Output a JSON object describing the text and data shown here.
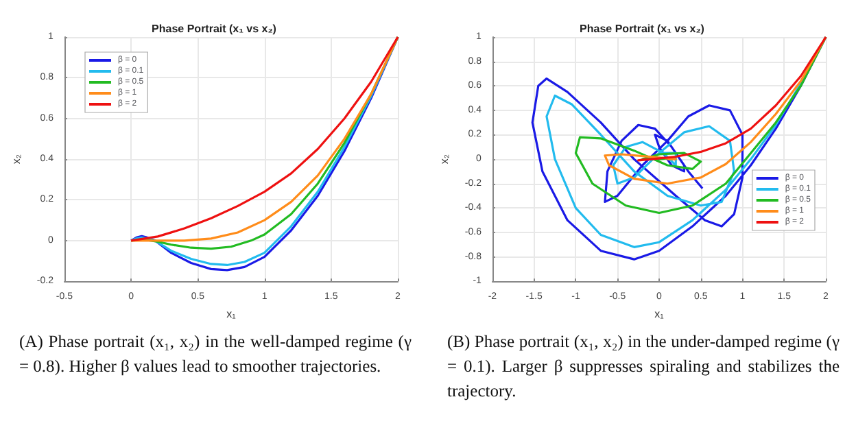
{
  "chart_data": [
    {
      "type": "line",
      "title": "Phase Portrait (x₁ vs x₂)",
      "xlabel": "x₁",
      "ylabel": "x₂",
      "xlim": [
        -0.5,
        2
      ],
      "xticks": [
        -0.5,
        0,
        0.5,
        1,
        1.5,
        2
      ],
      "ylim": [
        -0.2,
        1
      ],
      "yticks": [
        -0.2,
        0,
        0.2,
        0.4,
        0.6,
        0.8,
        1
      ],
      "grid": true,
      "legend": "top left",
      "marker": "none",
      "line_style": "solid",
      "annotations": [
        "(A) Phase portrait (x₁, x₂) in the well-damped regime (γ = 0.8). Higher β values lead to smoother trajectories."
      ],
      "series": [
        {
          "name": "β = 0",
          "color": "#1a1ae6",
          "x": [
            0,
            0.04,
            0.08,
            0.12,
            0.18,
            0.3,
            0.45,
            0.6,
            0.72,
            0.85,
            1.0,
            1.2,
            1.4,
            1.6,
            1.8,
            2.0
          ],
          "values": [
            0,
            0.015,
            0.022,
            0.015,
            0,
            -0.06,
            -0.11,
            -0.14,
            -0.145,
            -0.13,
            -0.08,
            0.05,
            0.22,
            0.44,
            0.7,
            1.0
          ]
        },
        {
          "name": "β = 0.1",
          "color": "#22bbee",
          "x": [
            0,
            0.04,
            0.08,
            0.12,
            0.18,
            0.3,
            0.45,
            0.6,
            0.72,
            0.85,
            1.0,
            1.2,
            1.4,
            1.6,
            1.8,
            2.0
          ],
          "values": [
            0,
            0.01,
            0.015,
            0.01,
            0,
            -0.05,
            -0.09,
            -0.115,
            -0.12,
            -0.105,
            -0.06,
            0.07,
            0.24,
            0.46,
            0.71,
            1.0
          ]
        },
        {
          "name": "β = 0.5",
          "color": "#22bb22",
          "x": [
            0,
            0.1,
            0.2,
            0.3,
            0.45,
            0.6,
            0.75,
            0.9,
            1.0,
            1.2,
            1.4,
            1.6,
            1.8,
            2.0
          ],
          "values": [
            0,
            0.005,
            -0.005,
            -0.02,
            -0.035,
            -0.04,
            -0.03,
            0,
            0.03,
            0.13,
            0.28,
            0.48,
            0.72,
            1.0
          ]
        },
        {
          "name": "β = 1",
          "color": "#ff8c1a",
          "x": [
            0,
            0.2,
            0.4,
            0.6,
            0.8,
            1.0,
            1.2,
            1.4,
            1.6,
            1.8,
            2.0
          ],
          "values": [
            0,
            0,
            0,
            0.01,
            0.04,
            0.1,
            0.19,
            0.32,
            0.5,
            0.72,
            1.0
          ]
        },
        {
          "name": "β = 2",
          "color": "#ee1111",
          "x": [
            0,
            0.2,
            0.4,
            0.6,
            0.8,
            1.0,
            1.2,
            1.4,
            1.6,
            1.8,
            2.0
          ],
          "values": [
            0,
            0.02,
            0.06,
            0.11,
            0.17,
            0.24,
            0.33,
            0.45,
            0.6,
            0.78,
            1.0
          ]
        }
      ]
    },
    {
      "type": "line",
      "title": "Phase Portrait (x₁ vs x₂)",
      "xlabel": "x₁",
      "ylabel": "x₂",
      "xlim": [
        -2,
        2
      ],
      "xticks": [
        -2,
        -1.5,
        -1,
        -0.5,
        0,
        0.5,
        1,
        1.5,
        2
      ],
      "ylim": [
        -1,
        1
      ],
      "yticks": [
        -1,
        -0.8,
        -0.6,
        -0.4,
        -0.2,
        0,
        0.2,
        0.4,
        0.6,
        0.8,
        1
      ],
      "grid": true,
      "legend": "bottom right",
      "marker": "none",
      "line_style": "solid",
      "annotations": [
        "(B) Phase portrait (x₁, x₂) in the under-damped regime (γ = 0.1). Larger β suppresses spiraling and stabilizes the trajectory."
      ],
      "series": [
        {
          "name": "β = 0",
          "color": "#1a1ae6",
          "x": [
            2,
            1.7,
            1.4,
            1.1,
            0.8,
            0.4,
            0,
            -0.3,
            -0.7,
            -1.1,
            -1.4,
            -1.52,
            -1.45,
            -1.35,
            -1.1,
            -0.7,
            -0.3,
            0.2,
            0.55,
            0.75,
            0.9,
            1.0,
            1.0,
            0.85,
            0.6,
            0.35,
            0.1,
            -0.2,
            -0.5,
            -0.65,
            -0.62,
            -0.45,
            -0.25,
            -0.05,
            0.15,
            0.3,
            0.3,
            0.15,
            0,
            -0.05,
            0.1,
            0.25,
            0.35,
            0.52
          ],
          "values": [
            1,
            0.6,
            0.25,
            -0.05,
            -0.3,
            -0.55,
            -0.75,
            -0.82,
            -0.75,
            -0.5,
            -0.1,
            0.3,
            0.6,
            0.66,
            0.55,
            0.3,
            0,
            -0.3,
            -0.5,
            -0.55,
            -0.45,
            -0.15,
            0.2,
            0.4,
            0.44,
            0.35,
            0.15,
            -0.05,
            -0.3,
            -0.35,
            -0.1,
            0.15,
            0.28,
            0.25,
            0.1,
            -0.05,
            -0.1,
            -0.05,
            0.1,
            0.2,
            0.15,
            0,
            -0.1,
            -0.24
          ]
        },
        {
          "name": "β = 0.1",
          "color": "#22bbee",
          "x": [
            2,
            1.7,
            1.4,
            1.1,
            0.8,
            0.4,
            0,
            -0.3,
            -0.7,
            -1.0,
            -1.25,
            -1.35,
            -1.25,
            -1.05,
            -0.7,
            -0.3,
            0.1,
            0.5,
            0.75,
            0.9,
            0.85,
            0.6,
            0.3,
            0,
            -0.3,
            -0.5,
            -0.55,
            -0.4,
            -0.2,
            0.05,
            0.2,
            0.2,
            0
          ],
          "values": [
            1,
            0.62,
            0.28,
            0,
            -0.25,
            -0.5,
            -0.68,
            -0.72,
            -0.62,
            -0.4,
            0,
            0.35,
            0.52,
            0.45,
            0.2,
            -0.1,
            -0.3,
            -0.38,
            -0.35,
            -0.1,
            0.15,
            0.27,
            0.22,
            0.05,
            -0.15,
            -0.2,
            -0.05,
            0.1,
            0.14,
            0.05,
            -0.05,
            0.05,
            0.05
          ]
        },
        {
          "name": "β = 0.5",
          "color": "#22bb22",
          "x": [
            2,
            1.7,
            1.4,
            1.1,
            0.8,
            0.4,
            0,
            -0.4,
            -0.8,
            -1.0,
            -0.95,
            -0.7,
            -0.3,
            0.1,
            0.4,
            0.5,
            0.3,
            0,
            -0.2,
            0,
            0.15
          ],
          "values": [
            1,
            0.6,
            0.3,
            0.05,
            -0.2,
            -0.38,
            -0.44,
            -0.38,
            -0.2,
            0.05,
            0.18,
            0.17,
            0.07,
            -0.05,
            -0.08,
            -0.02,
            0.05,
            0.04,
            0,
            0,
            0.01
          ]
        },
        {
          "name": "β = 1",
          "color": "#ff8c1a",
          "x": [
            2,
            1.7,
            1.4,
            1.1,
            0.8,
            0.5,
            0.1,
            -0.3,
            -0.6,
            -0.65,
            -0.45,
            -0.1,
            0.2,
            0.1
          ],
          "values": [
            1,
            0.64,
            0.37,
            0.14,
            -0.04,
            -0.15,
            -0.2,
            -0.16,
            -0.05,
            0.03,
            0.04,
            0.02,
            0,
            0
          ]
        },
        {
          "name": "β = 2",
          "color": "#ee1111",
          "x": [
            2,
            1.7,
            1.4,
            1.1,
            0.8,
            0.5,
            0.2,
            -0.1,
            -0.25,
            -0.15
          ],
          "values": [
            1,
            0.68,
            0.44,
            0.25,
            0.13,
            0.06,
            0.02,
            0,
            -0.01,
            0
          ]
        }
      ]
    }
  ]
}
